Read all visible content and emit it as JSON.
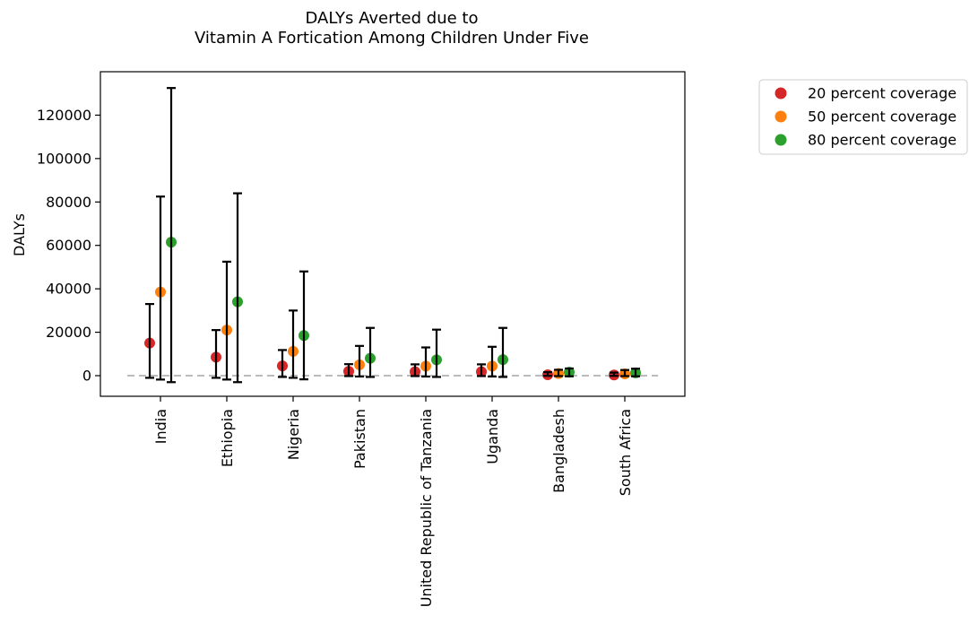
{
  "chart_data": {
    "type": "scatter",
    "title_lines": [
      "DALYs Averted due to",
      "Vitamin A Fortication Among Children Under Five"
    ],
    "xlabel": "",
    "ylabel": "DALYs",
    "ylim": [
      -9500,
      140000
    ],
    "yticks": [
      0,
      20000,
      40000,
      60000,
      80000,
      100000,
      120000
    ],
    "ytick_labels": [
      "0",
      "20000",
      "40000",
      "60000",
      "80000",
      "100000",
      "120000"
    ],
    "categories": [
      "India",
      "Ethiopia",
      "Nigeria",
      "Pakistan",
      "United Republic of Tanzania",
      "Uganda",
      "Bangladesh",
      "South Africa"
    ],
    "reference_line": 0,
    "legend_position": "outside-right",
    "series": [
      {
        "name": "20 percent coverage",
        "color": "#d62728",
        "values": [
          15000,
          8500,
          4500,
          2000,
          1800,
          1800,
          400,
          300
        ],
        "lower": [
          -1000,
          -1000,
          -600,
          -200,
          -200,
          -200,
          -100,
          -100
        ],
        "upper": [
          33000,
          21000,
          11800,
          5300,
          5200,
          5200,
          1600,
          1400
        ]
      },
      {
        "name": "50 percent coverage",
        "color": "#ff7f0e",
        "values": [
          38500,
          21000,
          11200,
          5000,
          4400,
          4400,
          1000,
          800
        ],
        "lower": [
          -1800,
          -1800,
          -1000,
          -400,
          -400,
          -400,
          -200,
          -200
        ],
        "upper": [
          82500,
          52500,
          30000,
          13700,
          13000,
          13300,
          2700,
          2600
        ]
      },
      {
        "name": "80 percent coverage",
        "color": "#2ca02c",
        "values": [
          61500,
          34000,
          18500,
          8000,
          7300,
          7400,
          1600,
          1300
        ],
        "lower": [
          -3000,
          -3000,
          -1700,
          -600,
          -600,
          -600,
          -300,
          -300
        ],
        "upper": [
          132500,
          84000,
          48000,
          22000,
          21200,
          22000,
          3300,
          3200
        ]
      }
    ]
  }
}
